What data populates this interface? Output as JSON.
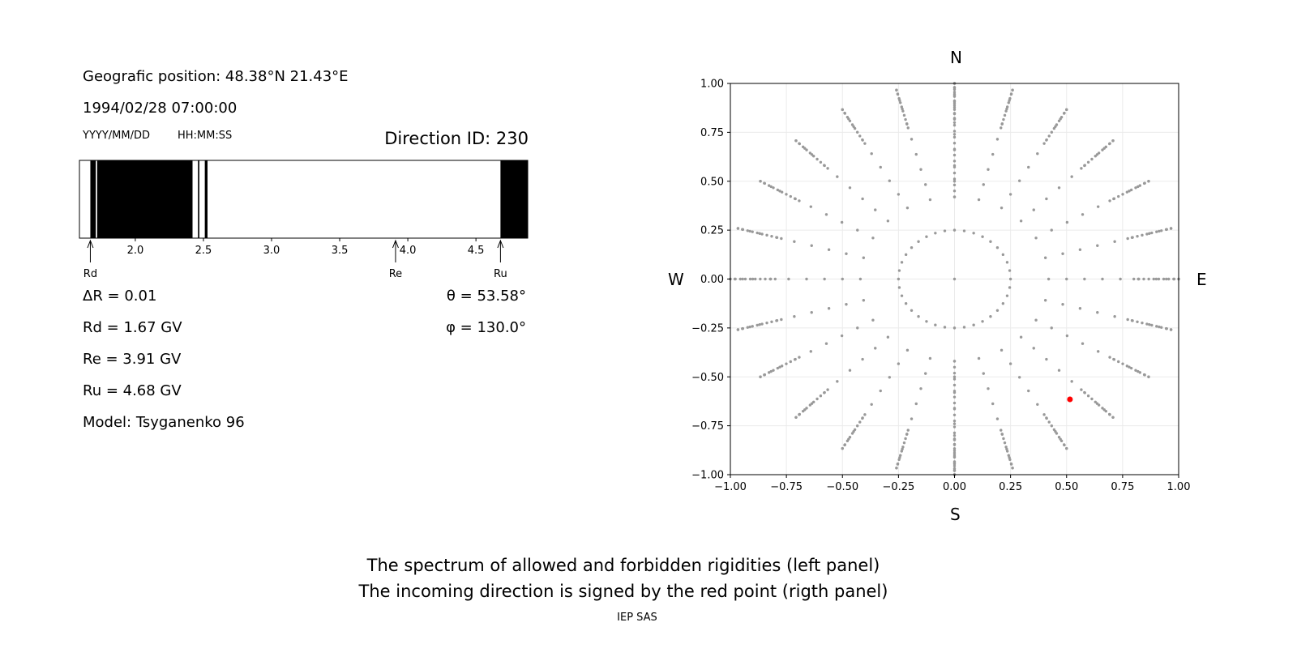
{
  "left_panel": {
    "position_line": "Geografic position: 48.38°N 21.43°E",
    "datetime": "1994/02/28 07:00:00",
    "date_format": "YYYY/MM/DD",
    "time_format": "HH:MM:SS",
    "direction_id": "Direction ID: 230",
    "delta_r": "ΔR = 0.01",
    "rd": "Rd = 1.67 GV",
    "re": "Re = 3.91 GV",
    "ru": "Ru = 4.68 GV",
    "model": "Model: Tsyganenko 96",
    "theta": "θ = 53.58°",
    "phi": "φ = 130.0°"
  },
  "right_panel": {
    "north": "N",
    "south": "S",
    "west": "W",
    "east": "E"
  },
  "footer": {
    "line1": "The spectrum of allowed and forbidden rigidities (left panel)",
    "line2": "The incoming direction is signed by the red point (rigth panel)",
    "credit": "IEP SAS"
  },
  "chart_data": [
    {
      "type": "bar",
      "name": "rigidity-spectrum",
      "xlim": [
        1.59,
        4.88
      ],
      "xticks": [
        2.0,
        2.5,
        3.0,
        3.5,
        4.0,
        4.5
      ],
      "xtick_labels": [
        "2.0",
        "2.5",
        "3.0",
        "3.5",
        "4.0",
        "4.5"
      ],
      "forbidden_bands": [
        [
          1.67,
          1.71
        ],
        [
          1.72,
          2.42
        ],
        [
          2.46,
          2.47
        ],
        [
          2.51,
          2.53
        ],
        [
          4.68,
          4.88
        ]
      ],
      "markers": [
        {
          "label": "Rd",
          "value": 1.67
        },
        {
          "label": "Re",
          "value": 3.91
        },
        {
          "label": "Ru",
          "value": 4.68
        }
      ],
      "colors": {
        "forbidden": "#000000",
        "allowed": "#ffffff"
      }
    },
    {
      "type": "scatter",
      "name": "incoming-directions",
      "xlim": [
        -1.0,
        1.0
      ],
      "ylim": [
        -1.0,
        1.0
      ],
      "ticks": [
        -1.0,
        -0.75,
        -0.5,
        -0.25,
        0.0,
        0.25,
        0.5,
        0.75,
        1.0
      ],
      "tick_labels": [
        "−1.00",
        "−0.75",
        "−0.50",
        "−0.25",
        "0.00",
        "0.25",
        "0.50",
        "0.75",
        "1.00"
      ],
      "grid": true,
      "grid_points": {
        "rings": [
          {
            "radius": 0.25,
            "count": 36
          },
          {
            "radius": 0.42,
            "count": 24
          },
          {
            "radius": 0.5,
            "count": 24
          },
          {
            "radius": 0.58,
            "count": 24
          },
          {
            "radius": 0.66,
            "count": 24
          },
          {
            "radius": 0.74,
            "count": 24
          },
          {
            "radius": 0.82,
            "count": 24
          },
          {
            "radius": 0.9,
            "count": 24
          },
          {
            "radius": 0.945,
            "count": 24
          },
          {
            "radius": 0.98,
            "count": 24
          },
          {
            "radius": 1.0,
            "count": 24
          }
        ],
        "spokes": {
          "count": 24,
          "start": 0.8,
          "end": 1.0,
          "samples": 10
        },
        "center": [
          0.0,
          0.0
        ]
      },
      "highlight": {
        "x": 0.515,
        "y": -0.615
      },
      "colors": {
        "points": "#999999",
        "highlight": "#ff0000"
      }
    }
  ]
}
